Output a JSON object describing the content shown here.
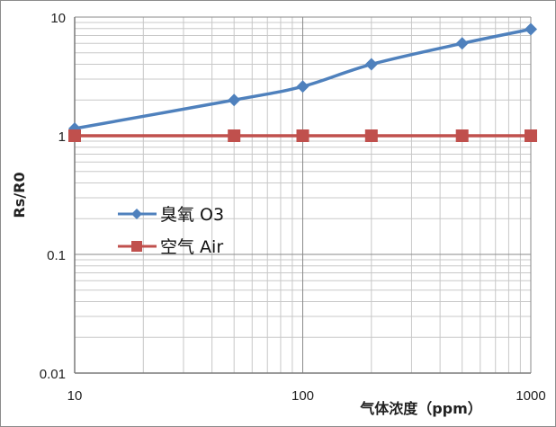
{
  "chart_data": {
    "type": "line",
    "xscale": "log",
    "yscale": "log",
    "xlim": [
      10,
      1000
    ],
    "ylim": [
      0.01,
      10
    ],
    "x_ticks": [
      "10",
      "100",
      "1000"
    ],
    "y_ticks": [
      "0.01",
      "0.1",
      "1",
      "10"
    ],
    "xlabel": "气体浓度（ppm）",
    "ylabel": "Rs/R0",
    "grid": true,
    "legend_position": "middle-left",
    "series": [
      {
        "name": "臭氧 O3",
        "color": "#4f81bd",
        "marker": "diamond",
        "x": [
          10,
          50,
          100,
          200,
          500,
          1000
        ],
        "y": [
          1.15,
          2.0,
          2.6,
          4.0,
          6.0,
          7.9
        ]
      },
      {
        "name": "空气 Air",
        "color": "#c0504d",
        "marker": "square",
        "x": [
          10,
          50,
          100,
          200,
          500,
          1000
        ],
        "y": [
          1.0,
          1.0,
          1.0,
          1.0,
          1.0,
          1.0
        ]
      }
    ]
  }
}
